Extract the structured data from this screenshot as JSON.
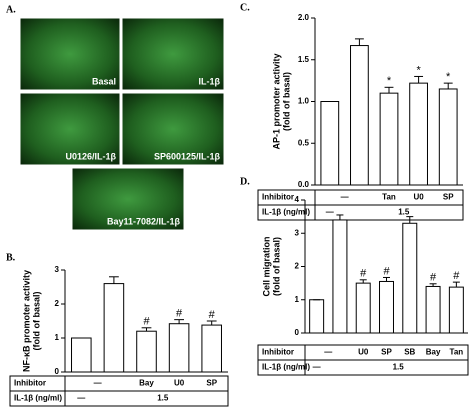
{
  "panel_labels": [
    "A.",
    "B.",
    "C.",
    "D."
  ],
  "images": [
    "Basal",
    "IL-1β",
    "U0126/IL-1β",
    "SP600125/IL-1β",
    "Bay11-7082/IL-1β"
  ],
  "chart_data": [
    {
      "type": "bar",
      "ylabel": [
        "NF-κB promoter activity",
        "(fold of basal)"
      ],
      "values": [
        1,
        2.6,
        1.2,
        1.42,
        1.38
      ],
      "errors": [
        0,
        0.2,
        0.1,
        0.12,
        0.12
      ],
      "annotations": [
        null,
        null,
        "#",
        "#",
        "#"
      ],
      "ylim": [
        0,
        3
      ],
      "yticks": [
        0,
        1,
        2,
        3
      ],
      "color": "#ffffff",
      "table": [
        {
          "label": "Inhibitor",
          "cells": [
            "—",
            null,
            "Bay",
            "U0",
            "SP"
          ]
        },
        {
          "label": "IL-1β (ng/ml)",
          "cells": [
            "—",
            "1.5",
            null,
            null,
            null
          ]
        }
      ]
    },
    {
      "type": "bar",
      "ylabel": [
        "AP-1 promoter activity",
        "(fold of basal)"
      ],
      "values": [
        1,
        1.67,
        1.1,
        1.22,
        1.15
      ],
      "errors": [
        0,
        0.08,
        0.07,
        0.08,
        0.07
      ],
      "annotations": [
        null,
        null,
        "*",
        "*",
        "*"
      ],
      "ylim": [
        0,
        2
      ],
      "yticks": [
        {
          "value": 0,
          "label": "0.0"
        },
        0.5,
        {
          "value": 1,
          "label": "1.0"
        },
        1.5,
        {
          "value": 2,
          "label": "2.0"
        }
      ],
      "color": "#ffffff",
      "table": [
        {
          "label": "Inhibitor",
          "cells": [
            "—",
            null,
            "Tan",
            "U0",
            "SP"
          ]
        },
        {
          "label": "IL-1β (ng/ml)",
          "cells": [
            "—",
            "1.5",
            null,
            null,
            null
          ]
        }
      ]
    },
    {
      "type": "bar",
      "ylabel": [
        "Cell migration",
        "(fold of basal)"
      ],
      "values": [
        1,
        3.4,
        1.5,
        1.55,
        3.3,
        1.4,
        1.38
      ],
      "errors": [
        0,
        0.15,
        0.1,
        0.12,
        0.2,
        0.08,
        0.15
      ],
      "annotations": [
        null,
        null,
        "#",
        "#",
        null,
        "#",
        "#"
      ],
      "ylim": [
        0,
        4
      ],
      "yticks": [
        0,
        1,
        2,
        3,
        4
      ],
      "color": "#ffffff",
      "table": [
        {
          "label": "Inhibitor",
          "cells": [
            "—",
            null,
            "U0",
            "SP",
            "SB",
            "Bay",
            "Tan"
          ]
        },
        {
          "label": "IL-1β (ng/ml)",
          "cells": [
            "—",
            "1.5",
            null,
            null,
            null,
            null,
            null
          ]
        }
      ]
    }
  ]
}
